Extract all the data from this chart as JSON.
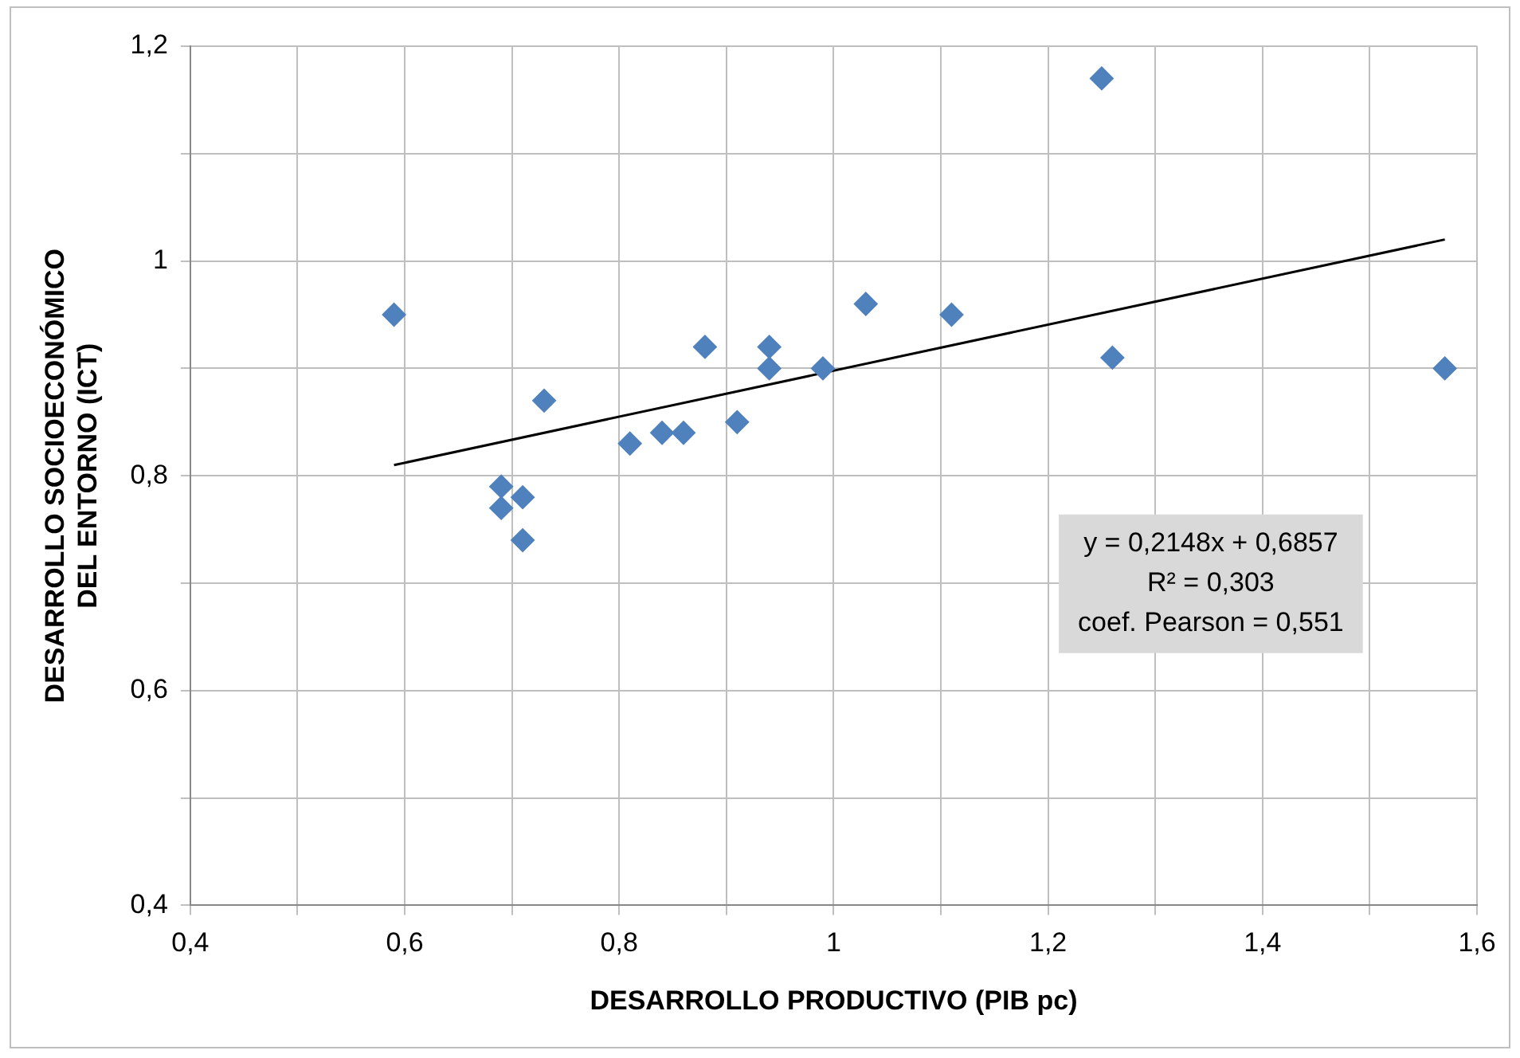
{
  "chart_data": {
    "type": "scatter",
    "xlabel": "DESARROLLO PRODUCTIVO (PIB pc)",
    "ylabel": "DESARROLLO SOCIOECONÓMICO\nDEL ENTORNO (ICT)",
    "xlim": [
      0.4,
      1.6
    ],
    "ylim": [
      0.4,
      1.2
    ],
    "xticks": [
      {
        "value": 0.4,
        "label": "0,4"
      },
      {
        "value": 0.5,
        "label": null
      },
      {
        "value": 0.6,
        "label": "0,6"
      },
      {
        "value": 0.7,
        "label": null
      },
      {
        "value": 0.8,
        "label": "0,8"
      },
      {
        "value": 0.9,
        "label": null
      },
      {
        "value": 1,
        "label": "1"
      },
      {
        "value": 1.1,
        "label": null
      },
      {
        "value": 1.2,
        "label": "1,2"
      },
      {
        "value": 1.3,
        "label": null
      },
      {
        "value": 1.4,
        "label": "1,4"
      },
      {
        "value": 1.5,
        "label": null
      },
      {
        "value": 1.6,
        "label": "1,6"
      }
    ],
    "yticks": [
      {
        "value": 0.4,
        "label": "0,4"
      },
      {
        "value": 0.5,
        "label": null
      },
      {
        "value": 0.6,
        "label": "0,6"
      },
      {
        "value": 0.7,
        "label": null
      },
      {
        "value": 0.8,
        "label": "0,8"
      },
      {
        "value": 0.9,
        "label": null
      },
      {
        "value": 1,
        "label": "1"
      },
      {
        "value": 1.1,
        "label": null
      },
      {
        "value": 1.2,
        "label": "1,2"
      }
    ],
    "grid": true,
    "legend": false,
    "marker": "diamond",
    "series": [
      {
        "color": "#4f81bd",
        "x": [
          0.59,
          0.69,
          0.69,
          0.71,
          0.71,
          0.73,
          0.81,
          0.84,
          0.86,
          0.88,
          0.91,
          0.94,
          0.94,
          0.99,
          1.03,
          1.11,
          1.25,
          1.26,
          1.57
        ],
        "values": [
          0.95,
          0.79,
          0.77,
          0.78,
          0.74,
          0.87,
          0.83,
          0.84,
          0.84,
          0.92,
          0.85,
          0.92,
          0.9,
          0.9,
          0.96,
          0.95,
          1.17,
          0.91,
          0.9
        ]
      },
      {
        "type": "line",
        "color": "#000000",
        "marker": "none",
        "x": [
          0.59,
          1.57
        ],
        "values": [
          0.81,
          1.02
        ]
      }
    ],
    "annotations": [
      "y = 0,2148x + 0,6857",
      "R² = 0,303",
      "coef. Pearson = 0,551"
    ]
  }
}
